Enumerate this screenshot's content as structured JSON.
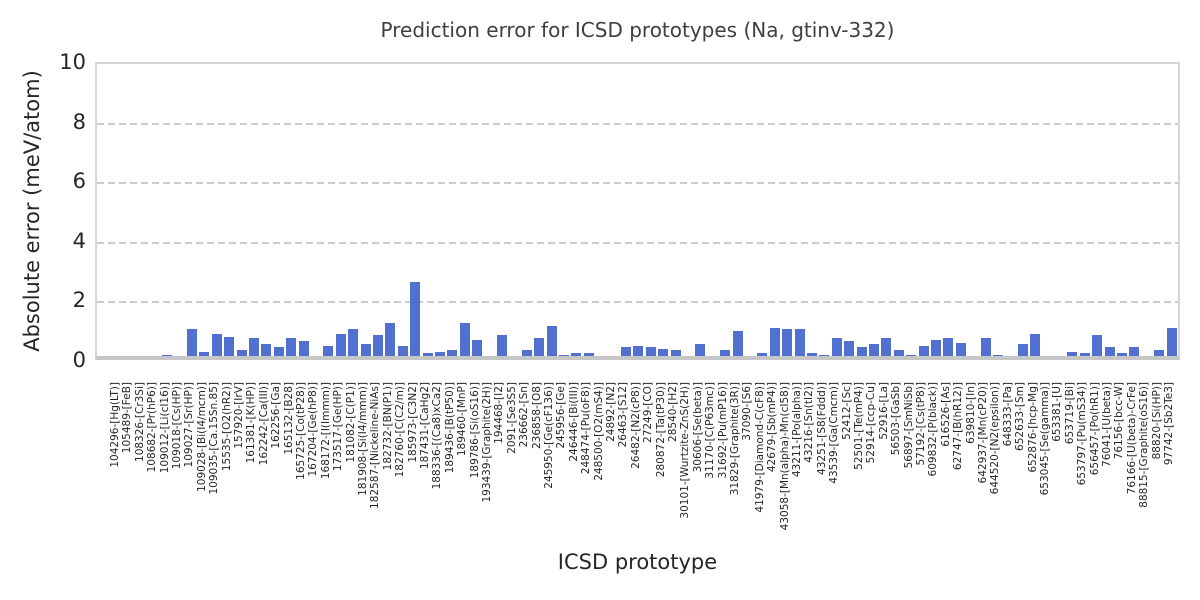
{
  "figure": {
    "title": "Prediction error for ICSD prototypes (Na, gtinv-332)",
    "xlabel": "ICSD prototype",
    "ylabel": "Absolute error (meV/atom)"
  },
  "style": {
    "bar_color": "#5270d0",
    "grid_color": "#cccccc",
    "spine_color": "#c6c6c6",
    "text_color": "#262626",
    "title_color": "#3f3f3f",
    "background": "#ffffff"
  },
  "chart_data": {
    "type": "bar",
    "title": "Prediction error for ICSD prototypes (Na, gtinv-332)",
    "xlabel": "ICSD prototype",
    "ylabel": "Absolute error (meV/atom)",
    "ylim": [
      0,
      10
    ],
    "yticks": [
      0,
      2,
      4,
      6,
      8,
      10
    ],
    "grid": "horizontal dashed at yticks",
    "legend": "none",
    "categories": [
      "104296-[Hg(LT)]",
      "105489-[FeB]",
      "108326-[Cr3Si]",
      "108682-[Pr(hP6)]",
      "109012-[Li(cI16)]",
      "109018-[Cs(HP)]",
      "109027-[Sr(HP)]",
      "109028-[Bi(I4/mcm)]",
      "109035-[Ca.15Sn.85]",
      "15535-[O2(hR2)]",
      "157920-[IrV]",
      "161381-[K(HP)]",
      "162242-[Ca(III)]",
      "162256-[Ga]",
      "165132-[B28]",
      "165725-[Co(tP28)]",
      "167204-[Ge(hP8)]",
      "168172-[I(Immm)]",
      "173517-[Ge(HP)]",
      "181082-[C(P1)]",
      "181908-[Si(I4/mmm)]",
      "182587-[Nickeline-NiAs]",
      "182732-[BN(P1)]",
      "182760-[C(C2/m)]",
      "185973-[C3N2]",
      "187431-[CaHg2]",
      "188336-[(Ca8)xCa2]",
      "189436-[B(tP50)]",
      "189460-[MnP]",
      "189786-[Si(oS16)]",
      "193439-[Graphite(2H)]",
      "194468-[I2]",
      "2091-[Se3S5]",
      "236662-[Sn]",
      "236858-[O8]",
      "245950-[Ge(cF136)]",
      "245956-[Ge]",
      "246446-[Bi(III)]",
      "248474-[Pu(oF8)]",
      "248500-[O2(mS4)]",
      "24892-[N2]",
      "26463-[S12]",
      "26482-[N2(cP8)]",
      "27249-[CO]",
      "280872-[Ta(tP30)]",
      "28540-[H2]",
      "30101-[Wurtzite-ZnS(2H)]",
      "30606-[Se(beta)]",
      "31170-[C(P63mc)]",
      "31692-[Pu(mP16)]",
      "31829-[Graphite(3R)]",
      "37090-[S6]",
      "41979-[Diamond-C(cF8)]",
      "42679-[Sb(mP4)]",
      "43058-[Mn(alpha)-Mn(cI58)]",
      "43211-[Po(alpha)]",
      "43216-[Sn(tI2)]",
      "43251-[S8(Fddd)]",
      "43539-[Ga(Cmcm)]",
      "52412-[Sc]",
      "52501-[Te(mP4)]",
      "52914-[ccp-Cu]",
      "52916-[La]",
      "56503-[GaSb]",
      "56897-[SmNiSb]",
      "57192-[Cs(tP8)]",
      "609832-[P(black)]",
      "616526-[As]",
      "62747-[B(hR12)]",
      "639810-[In]",
      "642937-[Mn(cP20)]",
      "644520-[N2(epsilon)]",
      "648333-[Pa]",
      "652633-[Sm]",
      "652876-[hcp-Mg]",
      "653045-[Se(gamma)]",
      "653381-[U]",
      "653719-[Bi]",
      "653797-[Pu(mS34)]",
      "656457-[Po(hR1)]",
      "76041-[U(beta)]",
      "76156-[bcc-W]",
      "76166-[U(beta)-CrFe]",
      "88815-[Graphite(oS16)]",
      "88820-[Si(HP)]",
      "97742-[Sb2Te3]"
    ],
    "values": [
      0,
      0,
      0,
      0,
      0.05,
      0,
      0.9,
      0.15,
      0.75,
      0.65,
      0.2,
      0.6,
      0.4,
      0.3,
      0.6,
      0.5,
      0,
      0.35,
      0.75,
      0.9,
      0.4,
      0.7,
      1.1,
      0.35,
      2.5,
      0.1,
      0.15,
      0.2,
      1.1,
      0.55,
      0,
      0.7,
      0,
      0.2,
      0.6,
      1.0,
      0.05,
      0.1,
      0.1,
      0,
      0,
      0.3,
      0.35,
      0.3,
      0.25,
      0.2,
      0,
      0.4,
      0,
      0.2,
      0.85,
      0,
      0.1,
      0.95,
      0.9,
      0.9,
      0.1,
      0.05,
      0.6,
      0.5,
      0.3,
      0.4,
      0.6,
      0.2,
      0.05,
      0.35,
      0.55,
      0.6,
      0.45,
      0,
      0.6,
      0.05,
      0,
      0.4,
      0.75,
      0,
      0,
      0.15,
      0.1,
      0.7,
      0.3,
      0.1,
      0.3,
      0,
      0.2,
      0.95
    ]
  }
}
